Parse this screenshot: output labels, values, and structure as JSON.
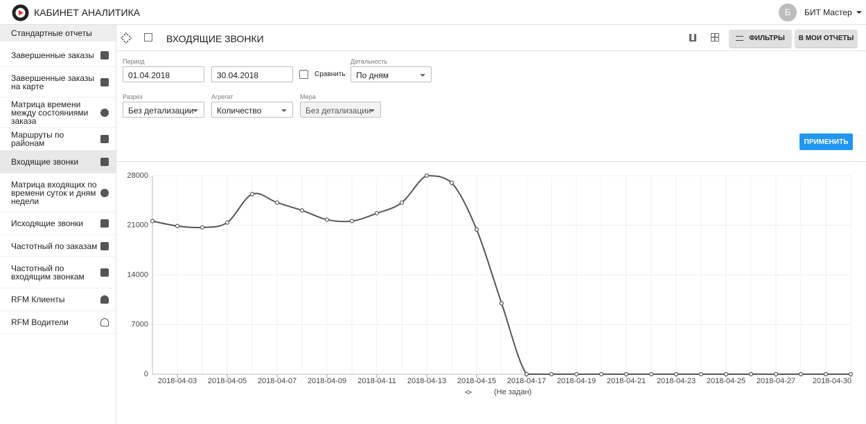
{
  "header": {
    "title": "КАБИНЕТ АНАЛИТИКА",
    "user_initial": "Б",
    "user_name": "БИТ Мастер"
  },
  "sidebar": {
    "section": "Стандартные отчеты",
    "items": [
      "Завершенные заказы",
      "Завершенные заказы на карте",
      "Матрица времени между состояниями заказа",
      "Маршруты по районам",
      "Входящие звонки",
      "Матрица входящих по времени суток и дням недели",
      "Исходящие звонки",
      "Частотный по заказам",
      "Частотный по входящим звонкам",
      "RFM Клиенты",
      "RFM Водители"
    ]
  },
  "toolbar": {
    "title": "ВХОДЯЩИЕ ЗВОНКИ",
    "filters": "ФИЛЬТРЫ",
    "my_reports": "В МОИ ОТЧЕТЫ"
  },
  "form": {
    "period_label": "Период",
    "date_from": "01.04.2018",
    "date_to": "30.04.2018",
    "compare": "Сравнить",
    "detail_label": "Детальность",
    "detail": "По дням",
    "slice_label": "Разрез",
    "slice": "Без детализации",
    "aggregate_label": "Агрегат",
    "aggregate": "Количество",
    "measure_label": "Мера",
    "measure": "Без детализации",
    "apply": "ПРИМЕНИТЬ"
  },
  "chart_data": {
    "type": "line",
    "categories": [
      null,
      "2018-04-03",
      null,
      "2018-04-05",
      null,
      "2018-04-07",
      null,
      "2018-04-09",
      null,
      "2018-04-11",
      null,
      "2018-04-13",
      null,
      "2018-04-15",
      null,
      "2018-04-17",
      null,
      "2018-04-19",
      null,
      "2018-04-21",
      null,
      "2018-04-23",
      null,
      "2018-04-25",
      null,
      "2018-04-27",
      null,
      null,
      "2018-04-30"
    ],
    "series": [
      {
        "name": "(Не задан)",
        "color": "#555555",
        "values": [
          21600,
          20900,
          20700,
          21400,
          25400,
          24200,
          23100,
          21800,
          21600,
          22700,
          24200,
          28000,
          27000,
          20400,
          10000,
          0,
          0,
          0,
          0,
          0,
          0,
          0,
          0,
          0,
          0,
          0,
          0,
          0,
          0
        ]
      }
    ],
    "ylim": [
      0,
      28000
    ],
    "yticks": [
      0,
      7000,
      14000,
      21000,
      28000
    ],
    "grid": true
  }
}
